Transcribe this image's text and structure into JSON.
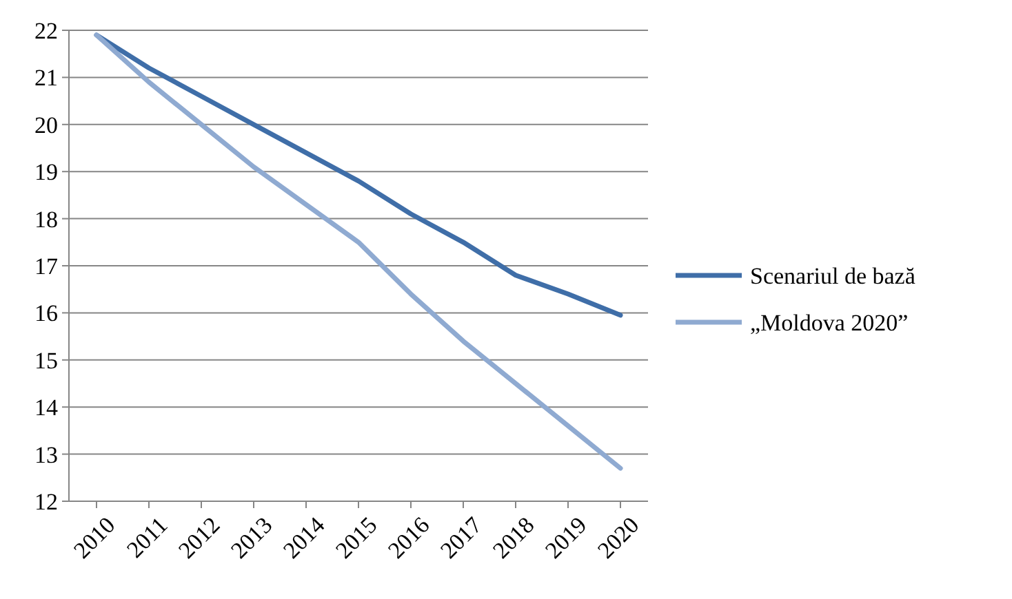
{
  "chart_data": {
    "type": "line",
    "categories": [
      "2010",
      "2011",
      "2012",
      "2013",
      "2014",
      "2015",
      "2016",
      "2017",
      "2018",
      "2019",
      "2020"
    ],
    "series": [
      {
        "name": "Scenariul de bază",
        "color": "#3f6ea8",
        "values": [
          21.9,
          21.2,
          20.6,
          20.0,
          19.4,
          18.8,
          18.1,
          17.5,
          16.8,
          16.4,
          15.95
        ]
      },
      {
        "name": "„Moldova 2020”",
        "color": "#8faad1",
        "values": [
          21.9,
          20.9,
          20.0,
          19.1,
          18.3,
          17.5,
          16.4,
          15.4,
          14.5,
          13.6,
          12.7
        ]
      }
    ],
    "ylim": [
      12,
      22
    ],
    "yticks": [
      12,
      13,
      14,
      15,
      16,
      17,
      18,
      19,
      20,
      21,
      22
    ],
    "grid": "y",
    "legend": "right",
    "marker": "none",
    "line_style": "solid"
  }
}
